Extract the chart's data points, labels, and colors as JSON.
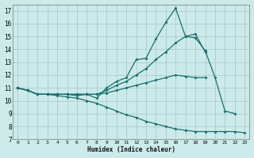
{
  "xlabel": "Humidex (Indice chaleur)",
  "background_color": "#cceaea",
  "grid_color": "#aacccc",
  "line_color": "#1a6e6e",
  "xlim": [
    -0.5,
    23.5
  ],
  "ylim": [
    7,
    17.5
  ],
  "xticks": [
    0,
    1,
    2,
    3,
    4,
    5,
    6,
    7,
    8,
    9,
    10,
    11,
    12,
    13,
    14,
    15,
    16,
    17,
    18,
    19,
    20,
    21,
    22,
    23
  ],
  "yticks": [
    7,
    8,
    9,
    10,
    11,
    12,
    13,
    14,
    15,
    16,
    17
  ],
  "lines": [
    {
      "x": [
        0,
        1,
        2,
        3,
        4,
        5,
        6,
        7,
        8,
        9,
        10,
        11,
        12,
        13,
        14,
        15,
        16,
        17,
        18,
        19,
        20,
        21,
        22
      ],
      "y": [
        11.0,
        10.8,
        10.5,
        10.5,
        10.5,
        10.5,
        10.5,
        10.5,
        10.2,
        11.0,
        11.5,
        11.8,
        13.2,
        13.3,
        14.8,
        16.1,
        17.2,
        15.0,
        14.9,
        13.9,
        11.8,
        9.2,
        9.0
      ]
    },
    {
      "x": [
        0,
        1,
        2,
        3,
        4,
        5,
        6,
        7,
        8,
        9,
        10,
        11,
        12,
        13,
        14,
        15,
        16,
        17,
        18,
        19
      ],
      "y": [
        11.0,
        10.8,
        10.5,
        10.5,
        10.5,
        10.5,
        10.5,
        10.5,
        10.5,
        10.8,
        11.2,
        11.5,
        12.0,
        12.5,
        13.2,
        13.8,
        14.5,
        15.0,
        15.2,
        13.8
      ]
    },
    {
      "x": [
        0,
        1,
        2,
        3,
        4,
        5,
        6,
        7,
        8,
        9,
        10,
        11,
        12,
        13,
        14,
        15,
        16,
        17,
        18,
        19
      ],
      "y": [
        11.0,
        10.8,
        10.5,
        10.5,
        10.5,
        10.5,
        10.4,
        10.5,
        10.5,
        10.6,
        10.8,
        11.0,
        11.2,
        11.4,
        11.6,
        11.8,
        12.0,
        11.9,
        11.8,
        11.8
      ]
    },
    {
      "x": [
        0,
        1,
        2,
        3,
        4,
        5,
        6,
        7,
        8,
        9,
        10,
        11,
        12,
        13,
        14,
        15,
        16,
        17,
        18,
        19,
        20,
        21,
        22,
        23
      ],
      "y": [
        11.0,
        10.8,
        10.5,
        10.5,
        10.4,
        10.3,
        10.2,
        10.0,
        9.8,
        9.5,
        9.2,
        8.9,
        8.7,
        8.4,
        8.2,
        8.0,
        7.8,
        7.7,
        7.6,
        7.6,
        7.6,
        7.6,
        7.6,
        7.5
      ]
    }
  ]
}
